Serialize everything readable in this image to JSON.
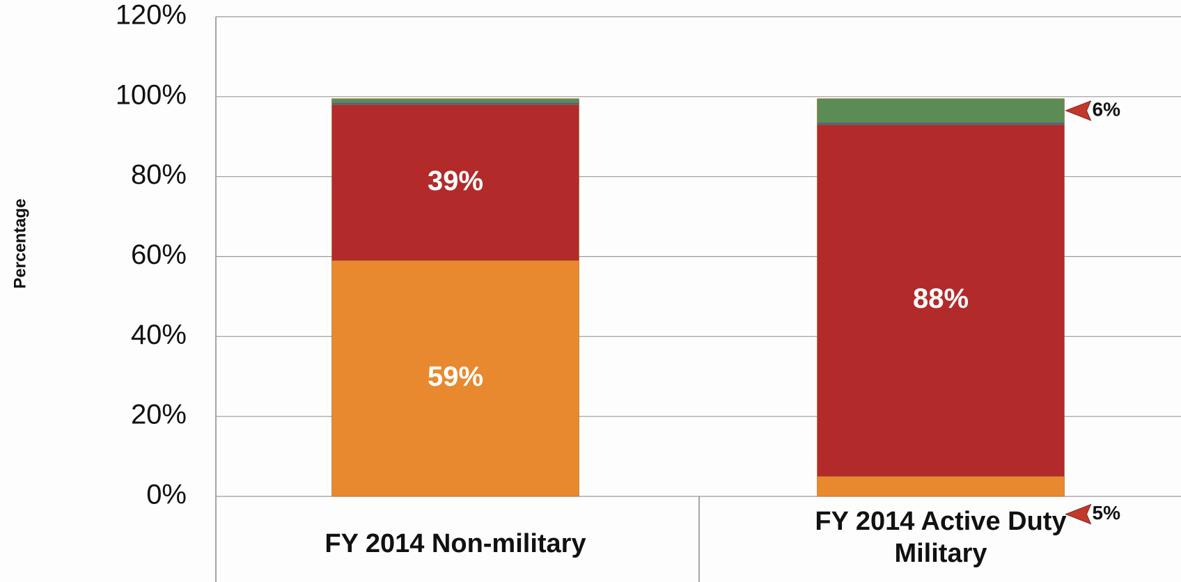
{
  "chart_data": {
    "type": "stacked-bar",
    "y_label": "Percentage",
    "categories": [
      "FY 2014 Non-military",
      "FY 2014 Active Duty Military"
    ],
    "series": [
      {
        "color": "#e8892f",
        "values": [
          59,
          5
        ],
        "value_labels": [
          "59%",
          "5%"
        ]
      },
      {
        "color": "#b22a2a",
        "values": [
          39,
          88
        ],
        "value_labels": [
          "39%",
          "88%"
        ]
      },
      {
        "color": "#2e6da4",
        "values": [
          0.5,
          0.5
        ],
        "value_labels": [
          null,
          null
        ]
      },
      {
        "color": "#5b8c55",
        "values": [
          1,
          6
        ],
        "value_labels": [
          null,
          "6%"
        ]
      }
    ],
    "ylim": [
      0,
      120
    ],
    "yticks": [
      {
        "value": 0,
        "label": "0%"
      },
      {
        "value": 20,
        "label": "20%"
      },
      {
        "value": 40,
        "label": "40%"
      },
      {
        "value": 60,
        "label": "60%"
      },
      {
        "value": 80,
        "label": "80%"
      },
      {
        "value": 100,
        "label": "100%"
      },
      {
        "value": 120,
        "label": "120%"
      }
    ],
    "grid": true
  }
}
